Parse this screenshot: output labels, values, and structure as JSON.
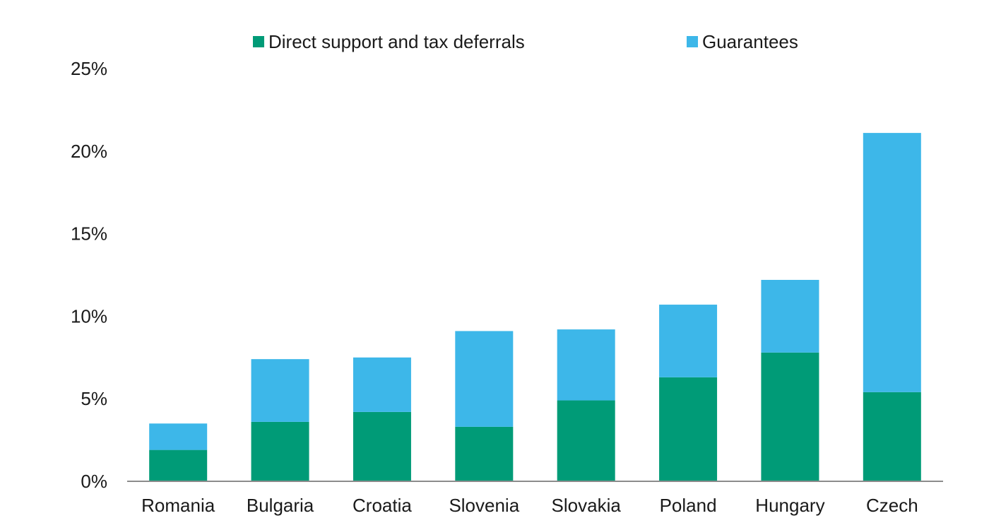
{
  "chart_data": {
    "type": "bar",
    "stacked": true,
    "title": "",
    "xlabel": "",
    "ylabel": "",
    "categories": [
      "Romania",
      "Bulgaria",
      "Croatia",
      "Slovenia",
      "Slovakia",
      "Poland",
      "Hungary",
      "Czech"
    ],
    "series": [
      {
        "name": "Direct support and tax deferrals",
        "color": "#009b77",
        "values": [
          1.9,
          3.6,
          4.2,
          3.3,
          4.9,
          6.3,
          7.8,
          5.4
        ]
      },
      {
        "name": "Guarantees",
        "color": "#3db7e9",
        "values": [
          1.6,
          3.8,
          3.3,
          5.8,
          4.3,
          4.4,
          4.4,
          15.7
        ]
      }
    ],
    "ylim": [
      0,
      25
    ],
    "yticks": [
      "0%",
      "5%",
      "10%",
      "15%",
      "20%",
      "25%"
    ],
    "ytick_values": [
      0,
      5,
      10,
      15,
      20,
      25
    ],
    "grid": false,
    "legend": "top"
  }
}
